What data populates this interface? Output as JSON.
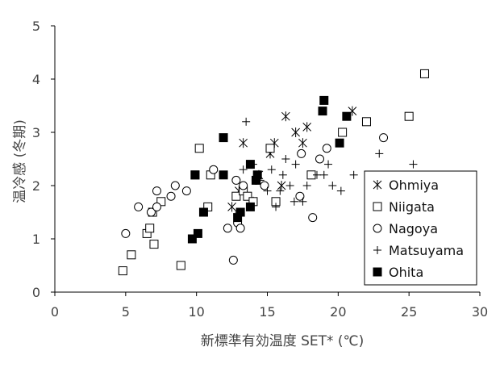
{
  "chart_data": {
    "type": "scatter",
    "xlabel": "新標準有効温度 SET* (℃)",
    "ylabel": "温冷感 (冬期)",
    "xlim": [
      0,
      30
    ],
    "ylim": [
      0,
      5
    ],
    "xticks": [
      "0",
      "5",
      "10",
      "15",
      "20",
      "25",
      "30"
    ],
    "yticks": [
      "0",
      "1",
      "2",
      "3",
      "4",
      "5"
    ],
    "grid": false,
    "legend_position": "bottom-right",
    "series": [
      {
        "name": "Ohmiya",
        "marker": "asterisk",
        "points": [
          [
            12.5,
            1.6
          ],
          [
            13.3,
            2.8
          ],
          [
            14.4,
            2.2
          ],
          [
            15.5,
            2.8
          ],
          [
            15.2,
            2.6
          ],
          [
            16.3,
            3.3
          ],
          [
            16.0,
            2.0
          ],
          [
            17.0,
            3.0
          ],
          [
            17.5,
            2.8
          ],
          [
            17.8,
            3.1
          ],
          [
            21.0,
            3.4
          ],
          [
            13.0,
            1.9
          ],
          [
            14.0,
            1.7
          ]
        ]
      },
      {
        "name": "Niigata",
        "marker": "open-square",
        "points": [
          [
            4.8,
            0.4
          ],
          [
            5.4,
            0.7
          ],
          [
            6.5,
            1.1
          ],
          [
            6.7,
            1.2
          ],
          [
            7.0,
            0.9
          ],
          [
            6.9,
            1.5
          ],
          [
            7.5,
            1.7
          ],
          [
            8.9,
            0.5
          ],
          [
            9.9,
            2.2
          ],
          [
            10.2,
            2.7
          ],
          [
            10.8,
            1.6
          ],
          [
            11.0,
            2.2
          ],
          [
            12.8,
            1.8
          ],
          [
            13.3,
            1.9
          ],
          [
            13.6,
            1.8
          ],
          [
            14.0,
            1.7
          ],
          [
            15.2,
            2.7
          ],
          [
            15.6,
            1.7
          ],
          [
            18.1,
            2.2
          ],
          [
            20.3,
            3.0
          ],
          [
            22.0,
            3.2
          ],
          [
            25.0,
            3.3
          ],
          [
            26.1,
            4.1
          ]
        ]
      },
      {
        "name": "Nagoya",
        "marker": "open-circle",
        "points": [
          [
            5.0,
            1.1
          ],
          [
            5.9,
            1.6
          ],
          [
            6.8,
            1.5
          ],
          [
            7.2,
            1.9
          ],
          [
            7.2,
            1.6
          ],
          [
            8.2,
            1.8
          ],
          [
            8.5,
            2.0
          ],
          [
            9.3,
            1.9
          ],
          [
            11.2,
            2.3
          ],
          [
            12.2,
            1.2
          ],
          [
            12.6,
            0.6
          ],
          [
            12.8,
            2.1
          ],
          [
            12.9,
            1.3
          ],
          [
            13.1,
            1.2
          ],
          [
            13.3,
            2.0
          ],
          [
            14.2,
            2.1
          ],
          [
            14.8,
            2.0
          ],
          [
            17.3,
            1.8
          ],
          [
            17.4,
            2.6
          ],
          [
            18.2,
            1.4
          ],
          [
            18.7,
            2.5
          ],
          [
            19.2,
            2.7
          ],
          [
            23.2,
            2.9
          ]
        ]
      },
      {
        "name": "Matsuyama",
        "marker": "plus",
        "points": [
          [
            13.0,
            1.5
          ],
          [
            13.3,
            2.3
          ],
          [
            13.5,
            3.2
          ],
          [
            14.0,
            2.4
          ],
          [
            14.5,
            2.1
          ],
          [
            15.0,
            1.9
          ],
          [
            15.3,
            2.3
          ],
          [
            15.6,
            1.6
          ],
          [
            15.9,
            1.9
          ],
          [
            16.1,
            2.2
          ],
          [
            16.3,
            2.5
          ],
          [
            16.6,
            2.0
          ],
          [
            16.9,
            1.7
          ],
          [
            17.0,
            2.4
          ],
          [
            17.5,
            1.7
          ],
          [
            17.8,
            2.0
          ],
          [
            18.5,
            2.2
          ],
          [
            19.0,
            2.2
          ],
          [
            19.3,
            2.4
          ],
          [
            19.6,
            2.0
          ],
          [
            20.2,
            1.9
          ],
          [
            21.1,
            2.2
          ],
          [
            22.9,
            2.6
          ],
          [
            25.3,
            2.4
          ]
        ]
      },
      {
        "name": "Ohita",
        "marker": "filled-square",
        "points": [
          [
            9.7,
            1.0
          ],
          [
            9.9,
            2.2
          ],
          [
            10.1,
            1.1
          ],
          [
            10.5,
            1.5
          ],
          [
            11.9,
            2.9
          ],
          [
            11.9,
            2.2
          ],
          [
            12.9,
            1.4
          ],
          [
            13.1,
            1.5
          ],
          [
            13.8,
            1.6
          ],
          [
            13.8,
            2.4
          ],
          [
            14.2,
            2.1
          ],
          [
            14.3,
            2.2
          ],
          [
            18.9,
            3.4
          ],
          [
            19.0,
            3.6
          ],
          [
            20.1,
            2.8
          ],
          [
            20.6,
            3.3
          ]
        ]
      }
    ]
  }
}
